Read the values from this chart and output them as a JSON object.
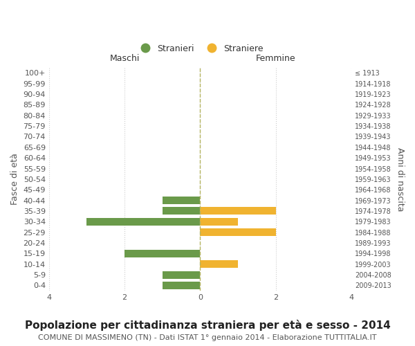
{
  "age_groups": [
    "100+",
    "95-99",
    "90-94",
    "85-89",
    "80-84",
    "75-79",
    "70-74",
    "65-69",
    "60-64",
    "55-59",
    "50-54",
    "45-49",
    "40-44",
    "35-39",
    "30-34",
    "25-29",
    "20-24",
    "15-19",
    "10-14",
    "5-9",
    "0-4"
  ],
  "birth_years": [
    "≤ 1913",
    "1914-1918",
    "1919-1923",
    "1924-1928",
    "1929-1933",
    "1934-1938",
    "1939-1943",
    "1944-1948",
    "1949-1953",
    "1954-1958",
    "1959-1963",
    "1964-1968",
    "1969-1973",
    "1974-1978",
    "1979-1983",
    "1984-1988",
    "1989-1993",
    "1994-1998",
    "1999-2003",
    "2004-2008",
    "2009-2013"
  ],
  "males": [
    0,
    0,
    0,
    0,
    0,
    0,
    0,
    0,
    0,
    0,
    0,
    0,
    -1,
    -1,
    -3,
    0,
    0,
    -2,
    0,
    -1,
    -1
  ],
  "females": [
    0,
    0,
    0,
    0,
    0,
    0,
    0,
    0,
    0,
    0,
    0,
    0,
    0,
    2,
    1,
    2,
    0,
    0,
    1,
    0,
    0
  ],
  "male_color": "#6a9a4a",
  "female_color": "#f0b330",
  "male_label": "Stranieri",
  "female_label": "Straniere",
  "title": "Popolazione per cittadinanza straniera per età e sesso - 2014",
  "subtitle": "COMUNE DI MASSIMENO (TN) - Dati ISTAT 1° gennaio 2014 - Elaborazione TUTTITALIA.IT",
  "xlabel_left": "Maschi",
  "xlabel_right": "Femmine",
  "ylabel_left": "Fasce di età",
  "ylabel_right": "Anni di nascita",
  "xlim": 4,
  "background_color": "#ffffff",
  "grid_color": "#cccccc",
  "tick_fontsize": 8,
  "label_fontsize": 9,
  "title_fontsize": 11,
  "subtitle_fontsize": 8
}
